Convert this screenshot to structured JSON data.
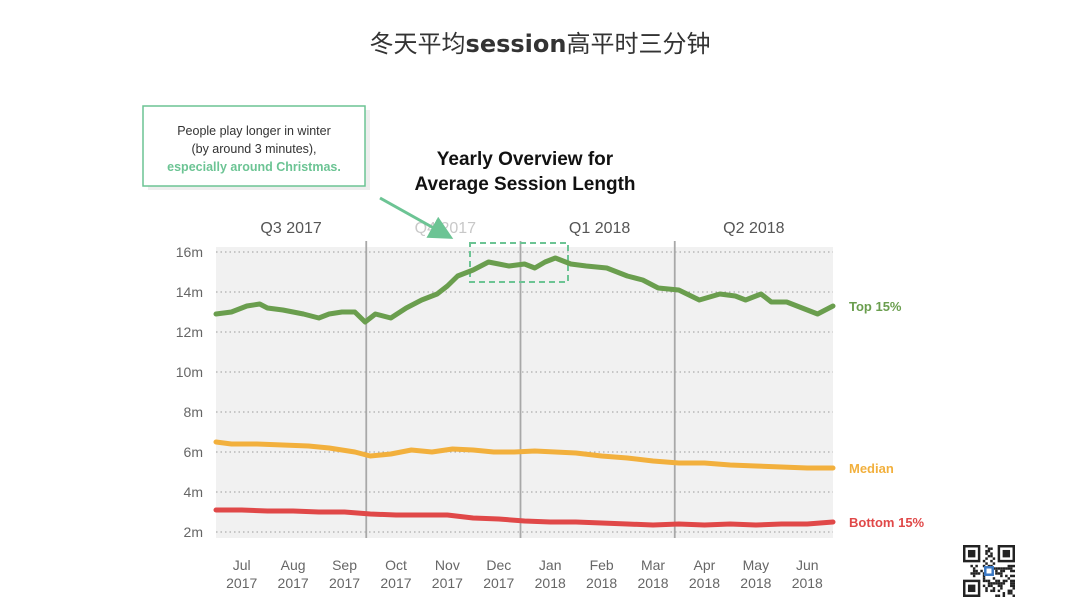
{
  "page": {
    "title_pre": "冬天平均",
    "title_bold": "session",
    "title_post": "高平时三分钟"
  },
  "annotation": {
    "line1": "People play longer in winter",
    "line2": "(by around 3 minutes),",
    "line3": "especially around Christmas."
  },
  "chart_data": {
    "type": "line",
    "title_line1": "Yearly Overview for",
    "title_line2": "Average Session Length",
    "quarters": [
      "Q3 2017",
      "Q4 2017",
      "Q1 2018",
      "Q2 2018"
    ],
    "y_ticks": [
      2,
      4,
      6,
      8,
      10,
      12,
      14,
      16
    ],
    "y_tick_labels": [
      "2m",
      "4m",
      "6m",
      "8m",
      "10m",
      "12m",
      "14m",
      "16m"
    ],
    "ylim": [
      2,
      16
    ],
    "x_range": [
      0,
      12
    ],
    "months": [
      {
        "m": "Jul",
        "y": "2017"
      },
      {
        "m": "Aug",
        "y": "2017"
      },
      {
        "m": "Sep",
        "y": "2017"
      },
      {
        "m": "Oct",
        "y": "2017"
      },
      {
        "m": "Nov",
        "y": "2017"
      },
      {
        "m": "Dec",
        "y": "2017"
      },
      {
        "m": "Jan",
        "y": "2018"
      },
      {
        "m": "Feb",
        "y": "2018"
      },
      {
        "m": "Mar",
        "y": "2018"
      },
      {
        "m": "Apr",
        "y": "2018"
      },
      {
        "m": "May",
        "y": "2018"
      },
      {
        "m": "Jun",
        "y": "2018"
      }
    ],
    "grid": true,
    "series": [
      {
        "name": "Top 15%",
        "color": "#6a9e4e",
        "x": [
          0,
          0.3,
          0.6,
          0.85,
          1.0,
          1.3,
          1.7,
          2.0,
          2.2,
          2.45,
          2.7,
          2.9,
          3.1,
          3.4,
          3.7,
          4.0,
          4.3,
          4.5,
          4.7,
          5.0,
          5.3,
          5.5,
          5.7,
          6.0,
          6.2,
          6.4,
          6.6,
          6.9,
          7.2,
          7.6,
          8.0,
          8.3,
          8.6,
          9.0,
          9.4,
          9.8,
          10.1,
          10.3,
          10.6,
          10.8,
          11.1,
          11.4,
          11.7,
          12.0
        ],
        "values": [
          12.9,
          13.0,
          13.3,
          13.4,
          13.2,
          13.1,
          12.9,
          12.7,
          12.9,
          13.0,
          13.0,
          12.5,
          12.9,
          12.7,
          13.2,
          13.6,
          13.9,
          14.3,
          14.8,
          15.1,
          15.5,
          15.4,
          15.3,
          15.4,
          15.2,
          15.5,
          15.7,
          15.4,
          15.3,
          15.2,
          14.8,
          14.6,
          14.2,
          14.1,
          13.6,
          13.9,
          13.8,
          13.6,
          13.9,
          13.5,
          13.5,
          13.2,
          12.9,
          13.3
        ]
      },
      {
        "name": "Median",
        "color": "#f2b03d",
        "x": [
          0,
          0.3,
          0.8,
          1.3,
          1.8,
          2.2,
          2.7,
          3.0,
          3.4,
          3.8,
          4.2,
          4.6,
          5.0,
          5.4,
          5.8,
          6.2,
          6.6,
          7.0,
          7.5,
          8.0,
          8.5,
          9.0,
          9.5,
          10.0,
          10.5,
          11.0,
          11.5,
          12.0
        ],
        "values": [
          6.5,
          6.4,
          6.4,
          6.35,
          6.3,
          6.2,
          6.0,
          5.8,
          5.9,
          6.1,
          6.0,
          6.15,
          6.1,
          6.0,
          6.0,
          6.05,
          6.0,
          5.95,
          5.8,
          5.7,
          5.55,
          5.45,
          5.45,
          5.35,
          5.3,
          5.25,
          5.2,
          5.2
        ]
      },
      {
        "name": "Bottom 15%",
        "color": "#e04848",
        "x": [
          0,
          0.5,
          1.0,
          1.5,
          2.0,
          2.5,
          3.0,
          3.5,
          4.0,
          4.5,
          5.0,
          5.5,
          6.0,
          6.5,
          7.0,
          7.5,
          8.0,
          8.5,
          9.0,
          9.5,
          10.0,
          10.5,
          11.0,
          11.5,
          12.0
        ],
        "values": [
          3.1,
          3.1,
          3.05,
          3.05,
          3.0,
          3.0,
          2.9,
          2.85,
          2.85,
          2.85,
          2.7,
          2.65,
          2.55,
          2.5,
          2.5,
          2.45,
          2.4,
          2.35,
          2.4,
          2.35,
          2.4,
          2.35,
          2.4,
          2.4,
          2.5
        ]
      }
    ]
  }
}
